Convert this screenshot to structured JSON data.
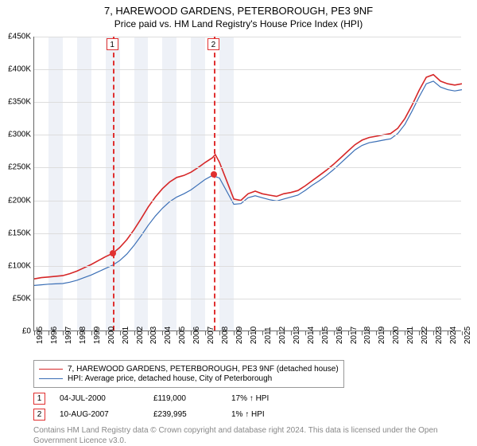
{
  "title": "7, HAREWOOD GARDENS, PETERBOROUGH, PE3 9NF",
  "subtitle": "Price paid vs. HM Land Registry's House Price Index (HPI)",
  "yaxis": {
    "min": 0,
    "max": 450000,
    "step": 50000,
    "labels": [
      "£0",
      "£50K",
      "£100K",
      "£150K",
      "£200K",
      "£250K",
      "£300K",
      "£350K",
      "£400K",
      "£450K"
    ]
  },
  "xaxis": {
    "min": 1995,
    "max": 2025,
    "years": [
      1995,
      1996,
      1997,
      1998,
      1999,
      2000,
      2001,
      2002,
      2003,
      2004,
      2005,
      2006,
      2007,
      2008,
      2009,
      2010,
      2011,
      2012,
      2013,
      2014,
      2015,
      2016,
      2017,
      2018,
      2019,
      2020,
      2021,
      2022,
      2023,
      2024,
      2025
    ]
  },
  "bands_light_start_years": [
    1996,
    1998,
    2000,
    2002,
    2004,
    2006,
    2008
  ],
  "series": [
    {
      "name": "7, HAREWOOD GARDENS, PETERBOROUGH, PE3 9NF (detached house)",
      "color": "#d62728",
      "width": 1.6,
      "points": [
        [
          1995.0,
          80000
        ],
        [
          1995.5,
          82000
        ],
        [
          1996.0,
          83000
        ],
        [
          1996.5,
          84000
        ],
        [
          1997.0,
          85000
        ],
        [
          1997.5,
          88000
        ],
        [
          1998.0,
          92000
        ],
        [
          1998.5,
          97000
        ],
        [
          1999.0,
          102000
        ],
        [
          1999.5,
          108000
        ],
        [
          2000.0,
          114000
        ],
        [
          2000.5,
          119000
        ],
        [
          2001.0,
          128000
        ],
        [
          2001.5,
          140000
        ],
        [
          2002.0,
          155000
        ],
        [
          2002.5,
          172000
        ],
        [
          2003.0,
          190000
        ],
        [
          2003.5,
          205000
        ],
        [
          2004.0,
          218000
        ],
        [
          2004.5,
          228000
        ],
        [
          2005.0,
          235000
        ],
        [
          2005.5,
          238000
        ],
        [
          2006.0,
          243000
        ],
        [
          2006.5,
          250000
        ],
        [
          2007.0,
          258000
        ],
        [
          2007.5,
          265000
        ],
        [
          2007.7,
          270000
        ],
        [
          2008.0,
          258000
        ],
        [
          2008.5,
          230000
        ],
        [
          2009.0,
          202000
        ],
        [
          2009.5,
          200000
        ],
        [
          2010.0,
          210000
        ],
        [
          2010.5,
          214000
        ],
        [
          2011.0,
          210000
        ],
        [
          2011.5,
          208000
        ],
        [
          2012.0,
          206000
        ],
        [
          2012.5,
          210000
        ],
        [
          2013.0,
          212000
        ],
        [
          2013.5,
          215000
        ],
        [
          2014.0,
          222000
        ],
        [
          2014.5,
          230000
        ],
        [
          2015.0,
          238000
        ],
        [
          2015.5,
          246000
        ],
        [
          2016.0,
          255000
        ],
        [
          2016.5,
          265000
        ],
        [
          2017.0,
          275000
        ],
        [
          2017.5,
          285000
        ],
        [
          2018.0,
          292000
        ],
        [
          2018.5,
          296000
        ],
        [
          2019.0,
          298000
        ],
        [
          2019.5,
          300000
        ],
        [
          2020.0,
          302000
        ],
        [
          2020.5,
          310000
        ],
        [
          2021.0,
          325000
        ],
        [
          2021.5,
          345000
        ],
        [
          2022.0,
          368000
        ],
        [
          2022.5,
          388000
        ],
        [
          2023.0,
          392000
        ],
        [
          2023.5,
          382000
        ],
        [
          2024.0,
          378000
        ],
        [
          2024.5,
          376000
        ],
        [
          2025.0,
          378000
        ]
      ]
    },
    {
      "name": "HPI: Average price, detached house, City of Peterborough",
      "color": "#3b6fb6",
      "width": 1.2,
      "points": [
        [
          1995.0,
          70000
        ],
        [
          1995.5,
          71000
        ],
        [
          1996.0,
          72000
        ],
        [
          1996.5,
          72500
        ],
        [
          1997.0,
          73000
        ],
        [
          1997.5,
          75000
        ],
        [
          1998.0,
          78000
        ],
        [
          1998.5,
          82000
        ],
        [
          1999.0,
          86000
        ],
        [
          1999.5,
          91000
        ],
        [
          2000.0,
          96000
        ],
        [
          2000.5,
          101000
        ],
        [
          2001.0,
          108000
        ],
        [
          2001.5,
          118000
        ],
        [
          2002.0,
          131000
        ],
        [
          2002.5,
          146000
        ],
        [
          2003.0,
          162000
        ],
        [
          2003.5,
          176000
        ],
        [
          2004.0,
          188000
        ],
        [
          2004.5,
          198000
        ],
        [
          2005.0,
          205000
        ],
        [
          2005.5,
          210000
        ],
        [
          2006.0,
          216000
        ],
        [
          2006.5,
          224000
        ],
        [
          2007.0,
          232000
        ],
        [
          2007.5,
          238000
        ],
        [
          2008.0,
          234000
        ],
        [
          2008.5,
          214000
        ],
        [
          2009.0,
          194000
        ],
        [
          2009.5,
          195000
        ],
        [
          2010.0,
          204000
        ],
        [
          2010.5,
          207000
        ],
        [
          2011.0,
          204000
        ],
        [
          2011.5,
          201000
        ],
        [
          2012.0,
          199000
        ],
        [
          2012.5,
          202000
        ],
        [
          2013.0,
          205000
        ],
        [
          2013.5,
          208000
        ],
        [
          2014.0,
          215000
        ],
        [
          2014.5,
          223000
        ],
        [
          2015.0,
          230000
        ],
        [
          2015.5,
          238000
        ],
        [
          2016.0,
          247000
        ],
        [
          2016.5,
          257000
        ],
        [
          2017.0,
          267000
        ],
        [
          2017.5,
          277000
        ],
        [
          2018.0,
          284000
        ],
        [
          2018.5,
          288000
        ],
        [
          2019.0,
          290000
        ],
        [
          2019.5,
          292000
        ],
        [
          2020.0,
          294000
        ],
        [
          2020.5,
          302000
        ],
        [
          2021.0,
          316000
        ],
        [
          2021.5,
          336000
        ],
        [
          2022.0,
          358000
        ],
        [
          2022.5,
          378000
        ],
        [
          2023.0,
          382000
        ],
        [
          2023.5,
          373000
        ],
        [
          2024.0,
          369000
        ],
        [
          2024.5,
          367000
        ],
        [
          2025.0,
          369000
        ]
      ]
    }
  ],
  "sale_markers": [
    {
      "n": "1",
      "year": 2000.5,
      "price": 119000
    },
    {
      "n": "2",
      "year": 2007.6,
      "price": 239995
    }
  ],
  "legend": {
    "rows": [
      {
        "color": "#d62728",
        "label": "7, HAREWOOD GARDENS, PETERBOROUGH, PE3 9NF (detached house)"
      },
      {
        "color": "#3b6fb6",
        "label": "HPI: Average price, detached house, City of Peterborough"
      }
    ]
  },
  "sale_table": [
    {
      "n": "1",
      "date": "04-JUL-2000",
      "price": "£119,000",
      "hpi": "17% ↑ HPI"
    },
    {
      "n": "2",
      "date": "10-AUG-2007",
      "price": "£239,995",
      "hpi": "1% ↑ HPI"
    }
  ],
  "footnote": "Contains HM Land Registry data © Crown copyright and database right 2024. This data is licensed under the Open Government Licence v3.0.",
  "band_color": "#eef1f7",
  "grid_color": "#dddddd",
  "marker_border": "#e03030",
  "background": "#ffffff",
  "text_color": "#000000",
  "footnote_color": "#888888"
}
